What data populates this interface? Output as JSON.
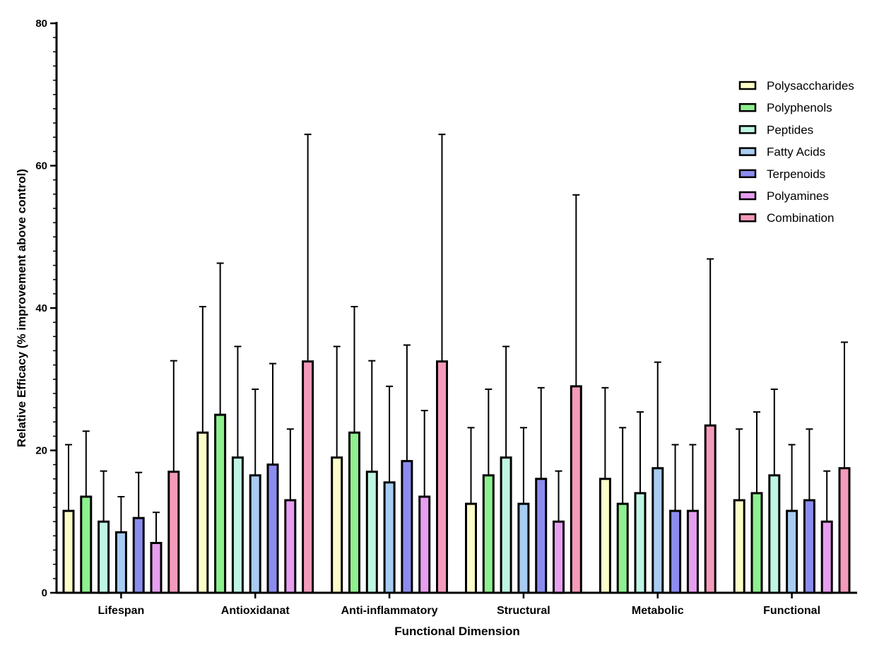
{
  "chart_data": {
    "type": "bar",
    "title": "",
    "xlabel": "Functional Dimension",
    "ylabel": "Relative Efficacy (% improvement above control)",
    "ylim": [
      0,
      80
    ],
    "yticks": [
      0,
      20,
      40,
      60,
      80
    ],
    "grid": false,
    "legend_position": "top-right",
    "error_bars": "positive",
    "categories": [
      "Lifespan",
      "Antioxidanat",
      "Anti-inflammatory",
      "Structural",
      "Metabolic",
      "Functional"
    ],
    "series": [
      {
        "name": "Polysaccharides",
        "color": "#fdfdc8",
        "values": [
          11.5,
          22.5,
          19,
          12.5,
          16,
          13
        ],
        "errors": [
          9.3,
          17.7,
          15.6,
          10.7,
          12.8,
          10
        ]
      },
      {
        "name": "Polyphenols",
        "color": "#8ef08e",
        "values": [
          13.5,
          25,
          22.5,
          16.5,
          12.5,
          14
        ],
        "errors": [
          9.2,
          21.3,
          17.7,
          12.1,
          10.7,
          11.4
        ]
      },
      {
        "name": "Peptides",
        "color": "#bff5e4",
        "values": [
          10,
          19,
          17,
          19,
          14,
          16.5
        ],
        "errors": [
          7.1,
          15.6,
          15.6,
          15.6,
          11.4,
          12.1
        ]
      },
      {
        "name": "Fatty Acids",
        "color": "#a8ccf2",
        "values": [
          8.5,
          16.5,
          15.5,
          12.5,
          17.5,
          11.5
        ],
        "errors": [
          5,
          12.1,
          13.5,
          10.7,
          14.9,
          9.3
        ]
      },
      {
        "name": "Terpenoids",
        "color": "#8c8cf0",
        "values": [
          10.5,
          18,
          18.5,
          16,
          11.5,
          13
        ],
        "errors": [
          6.4,
          14.2,
          16.3,
          12.8,
          9.3,
          10
        ]
      },
      {
        "name": "Polyamines",
        "color": "#e79ef0",
        "values": [
          7,
          13,
          13.5,
          10,
          11.5,
          10
        ],
        "errors": [
          4.3,
          10,
          12.1,
          7.1,
          9.3,
          7.1
        ]
      },
      {
        "name": "Combination",
        "color": "#f49abb",
        "values": [
          17,
          32.5,
          32.5,
          29,
          23.5,
          17.5
        ],
        "errors": [
          15.6,
          31.9,
          31.9,
          26.9,
          23.4,
          17.7
        ]
      }
    ]
  }
}
